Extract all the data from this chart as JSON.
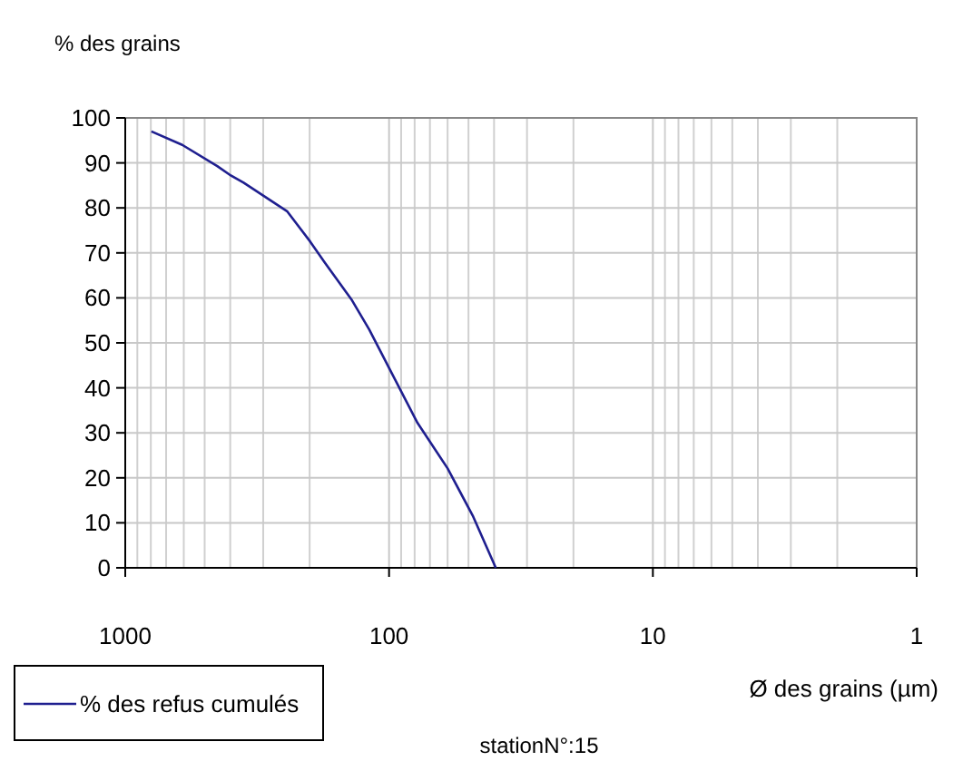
{
  "chart_data": {
    "type": "line",
    "ylabel": "% des grains",
    "xlabel": "Ø des grains (µm)",
    "annotations": [
      "stationN°:15"
    ],
    "log": "x",
    "xlim": [
      1000,
      1
    ],
    "xticks": [
      1000,
      100,
      10,
      1
    ],
    "ylim": [
      0,
      100
    ],
    "yticks": [
      0,
      10,
      20,
      30,
      40,
      50,
      60,
      70,
      80,
      90,
      100
    ],
    "grid": true,
    "legend": "bottom left",
    "marker": "none",
    "line_style": "solid",
    "series": [
      {
        "name": "% des refus cumulés",
        "color": "#1f1f8f",
        "x": [
          796,
          608,
          448,
          398,
          356,
          243,
          199,
          175,
          139,
          119,
          78,
          60,
          48,
          39.4
        ],
        "values": [
          97,
          94,
          89.3,
          87.2,
          85.6,
          79.2,
          72.5,
          67.8,
          59.7,
          53,
          32.2,
          22.1,
          11.4,
          0
        ]
      }
    ]
  }
}
